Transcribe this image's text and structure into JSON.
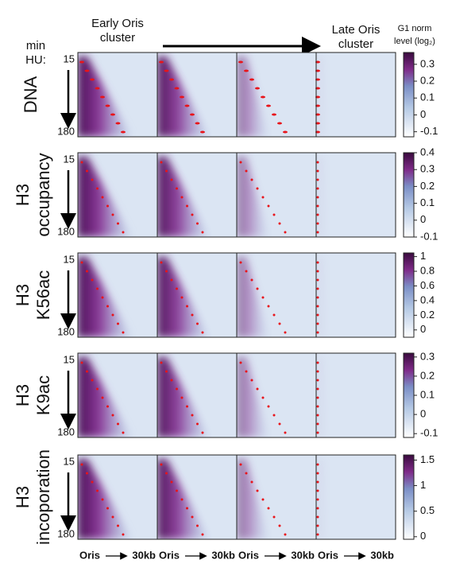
{
  "header": {
    "early": [
      "Early Oris",
      "cluster"
    ],
    "late": [
      "Late Oris",
      "cluster"
    ],
    "colorbar_title": [
      "G1 norm",
      "level (log₂)"
    ],
    "min": "min",
    "hu": "HU:"
  },
  "rows": [
    {
      "label": [
        "DNA"
      ],
      "top": "15",
      "bottom": "180",
      "ylim": [
        -0.13,
        0.37
      ],
      "yticks": [
        0.3,
        0.2,
        0.1,
        0,
        -0.1
      ]
    },
    {
      "label": [
        "H3",
        "occupancy"
      ],
      "top": "15",
      "bottom": "180",
      "ylim": [
        -0.1,
        0.4
      ],
      "yticks": [
        0.4,
        0.3,
        0.2,
        0.1,
        0,
        -0.1
      ]
    },
    {
      "label": [
        "H3",
        "K56ac"
      ],
      "top": "15",
      "bottom": "180",
      "ylim": [
        -0.1,
        1.05
      ],
      "yticks": [
        1,
        0.8,
        0.6,
        0.4,
        0.2,
        0
      ]
    },
    {
      "label": [
        "H3",
        "K9ac"
      ],
      "top": "15",
      "bottom": "180",
      "ylim": [
        -0.12,
        0.32
      ],
      "yticks": [
        0.3,
        0.2,
        0.1,
        0,
        -0.1
      ]
    },
    {
      "label": [
        "H3",
        "incoporation"
      ],
      "top": "15",
      "bottom": "180",
      "ylim": [
        -0.05,
        1.6
      ],
      "yticks": [
        1.5,
        1,
        0.5,
        0
      ]
    }
  ],
  "x_labels": [
    [
      "Oris",
      "30kb"
    ],
    [
      "Oris",
      "30kb"
    ],
    [
      "Oris",
      "30kb"
    ],
    [
      "Oris",
      "30kb"
    ]
  ]
}
